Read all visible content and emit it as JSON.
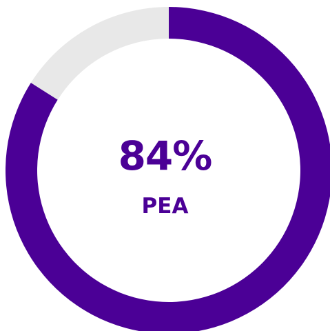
{
  "chart_data": {
    "type": "pie",
    "value": 84,
    "remainder": 16,
    "center_value_label": "84%",
    "center_caption": "PEA",
    "title": "",
    "colors": {
      "value": "#4b0096",
      "remainder": "#e8e8e8",
      "text": "#4b0096"
    }
  }
}
